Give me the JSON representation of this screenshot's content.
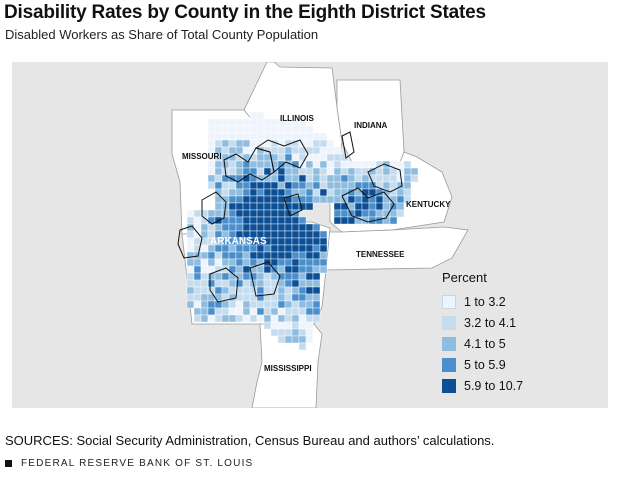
{
  "header": {
    "title": "Disability Rates by County in the Eighth District States",
    "subtitle": "Disabled Workers as Share of Total County Population"
  },
  "map": {
    "state_labels": {
      "illinois": "ILLINOIS",
      "indiana": "INDIANA",
      "missouri": "MISSOURI",
      "kentucky": "KENTUCKY",
      "arkansas": "ARKANSAS",
      "tennessee": "TENNESSEE",
      "mississippi": "MISSISSIPPI"
    },
    "colors": {
      "background": "#e6e6e6",
      "land": "#ffffff",
      "c1": "#eef4fb",
      "c2": "#c5dcef",
      "c3": "#8fbde0",
      "c4": "#4a8fcc",
      "c5": "#0d4f96"
    }
  },
  "legend": {
    "title": "Percent",
    "items": [
      {
        "label": "1 to 3.2",
        "color": "#eef4fb"
      },
      {
        "label": "3.2 to 4.1",
        "color": "#c5dcef"
      },
      {
        "label": "4.1 to 5",
        "color": "#8fbde0"
      },
      {
        "label": "5 to 5.9",
        "color": "#4a8fcc"
      },
      {
        "label": "5.9 to 10.7",
        "color": "#0d4f96"
      }
    ]
  },
  "footer": {
    "sources": "SOURCES: Social Security Administration, Census Bureau and authors’ calculations.",
    "credit": "FEDERAL RESERVE BANK OF ST. LOUIS"
  }
}
